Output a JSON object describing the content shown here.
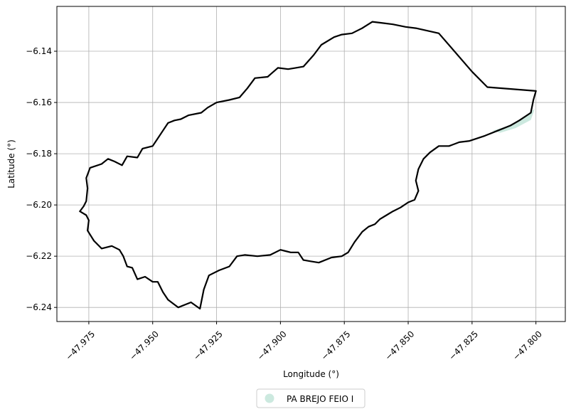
{
  "chart_data": {
    "type": "map",
    "xlabel": "Longitude (°)",
    "ylabel": "Latitude (°)",
    "xlim": [
      -47.9875,
      -47.7885
    ],
    "ylim": [
      -6.2455,
      -6.1225
    ],
    "xticks": [
      -47.975,
      -47.95,
      -47.925,
      -47.9,
      -47.875,
      -47.85,
      -47.825,
      -47.8
    ],
    "xtick_labels": [
      "−47.975",
      "−47.950",
      "−47.925",
      "−47.900",
      "−47.875",
      "−47.850",
      "−47.825",
      "−47.800"
    ],
    "yticks": [
      -6.14,
      -6.16,
      -6.18,
      -6.2,
      -6.22,
      -6.24
    ],
    "ytick_labels": [
      "−6.14",
      "−6.16",
      "−6.18",
      "−6.20",
      "−6.22",
      "−6.24"
    ],
    "grid": true,
    "legend": {
      "position": "bottom-center",
      "entries": [
        {
          "label": "PA BREJO FEIO I",
          "color": "#cce9df"
        }
      ]
    },
    "colors": {
      "boundary": "#000000",
      "fill": "#cce9df",
      "grid": "#b0b0b0"
    },
    "polygon": {
      "name": "PA BREJO FEIO I",
      "lonlat": [
        [
          -47.9785,
          -6.2025
        ],
        [
          -47.977,
          -6.2005
        ],
        [
          -47.976,
          -6.1985
        ],
        [
          -47.9755,
          -6.1935
        ],
        [
          -47.976,
          -6.1895
        ],
        [
          -47.9745,
          -6.1855
        ],
        [
          -47.97,
          -6.184
        ],
        [
          -47.9675,
          -6.182
        ],
        [
          -47.965,
          -6.183
        ],
        [
          -47.962,
          -6.1845
        ],
        [
          -47.96,
          -6.181
        ],
        [
          -47.956,
          -6.1815
        ],
        [
          -47.954,
          -6.178
        ],
        [
          -47.95,
          -6.177
        ],
        [
          -47.948,
          -6.174
        ],
        [
          -47.946,
          -6.171
        ],
        [
          -47.944,
          -6.168
        ],
        [
          -47.9415,
          -6.167
        ],
        [
          -47.939,
          -6.1665
        ],
        [
          -47.936,
          -6.165
        ],
        [
          -47.931,
          -6.164
        ],
        [
          -47.9285,
          -6.162
        ],
        [
          -47.925,
          -6.16
        ],
        [
          -47.92,
          -6.159
        ],
        [
          -47.916,
          -6.158
        ],
        [
          -47.913,
          -6.1545
        ],
        [
          -47.91,
          -6.1505
        ],
        [
          -47.905,
          -6.15
        ],
        [
          -47.901,
          -6.1465
        ],
        [
          -47.897,
          -6.147
        ],
        [
          -47.894,
          -6.1465
        ],
        [
          -47.891,
          -6.146
        ],
        [
          -47.887,
          -6.1415
        ],
        [
          -47.884,
          -6.1375
        ],
        [
          -47.879,
          -6.1345
        ],
        [
          -47.876,
          -6.1335
        ],
        [
          -47.872,
          -6.133
        ],
        [
          -47.868,
          -6.131
        ],
        [
          -47.864,
          -6.1285
        ],
        [
          -47.86,
          -6.129
        ],
        [
          -47.856,
          -6.1295
        ],
        [
          -47.851,
          -6.1305
        ],
        [
          -47.847,
          -6.131
        ],
        [
          -47.838,
          -6.133
        ],
        [
          -47.825,
          -6.148
        ],
        [
          -47.819,
          -6.154
        ],
        [
          -47.8,
          -6.1555
        ],
        [
          -47.801,
          -6.159
        ],
        [
          -47.802,
          -6.164
        ],
        [
          -47.8065,
          -6.167
        ],
        [
          -47.81,
          -6.169
        ],
        [
          -47.815,
          -6.171
        ],
        [
          -47.82,
          -6.173
        ],
        [
          -47.826,
          -6.175
        ],
        [
          -47.83,
          -6.1755
        ],
        [
          -47.834,
          -6.177
        ],
        [
          -47.838,
          -6.177
        ],
        [
          -47.8415,
          -6.1795
        ],
        [
          -47.844,
          -6.182
        ],
        [
          -47.846,
          -6.186
        ],
        [
          -47.847,
          -6.1905
        ],
        [
          -47.846,
          -6.1945
        ],
        [
          -47.8475,
          -6.198
        ],
        [
          -47.85,
          -6.199
        ],
        [
          -47.853,
          -6.201
        ],
        [
          -47.856,
          -6.2025
        ],
        [
          -47.8585,
          -6.204
        ],
        [
          -47.861,
          -6.2055
        ],
        [
          -47.863,
          -6.2075
        ],
        [
          -47.8655,
          -6.2085
        ],
        [
          -47.868,
          -6.2105
        ],
        [
          -47.871,
          -6.2145
        ],
        [
          -47.8735,
          -6.2185
        ],
        [
          -47.876,
          -6.22
        ],
        [
          -47.88,
          -6.2205
        ],
        [
          -47.885,
          -6.2225
        ],
        [
          -47.888,
          -6.222
        ],
        [
          -47.891,
          -6.2215
        ],
        [
          -47.893,
          -6.2185
        ],
        [
          -47.896,
          -6.2185
        ],
        [
          -47.898,
          -6.218
        ],
        [
          -47.9,
          -6.2175
        ],
        [
          -47.904,
          -6.2195
        ],
        [
          -47.909,
          -6.22
        ],
        [
          -47.914,
          -6.2195
        ],
        [
          -47.917,
          -6.22
        ],
        [
          -47.92,
          -6.224
        ],
        [
          -47.924,
          -6.2255
        ],
        [
          -47.928,
          -6.2275
        ],
        [
          -47.93,
          -6.233
        ],
        [
          -47.931,
          -6.238
        ],
        [
          -47.9315,
          -6.2405
        ],
        [
          -47.935,
          -6.238
        ],
        [
          -47.94,
          -6.24
        ],
        [
          -47.944,
          -6.237
        ],
        [
          -47.946,
          -6.234
        ],
        [
          -47.948,
          -6.23
        ],
        [
          -47.95,
          -6.23
        ],
        [
          -47.953,
          -6.228
        ],
        [
          -47.956,
          -6.229
        ],
        [
          -47.958,
          -6.2245
        ],
        [
          -47.96,
          -6.224
        ],
        [
          -47.9615,
          -6.22
        ],
        [
          -47.963,
          -6.2175
        ],
        [
          -47.966,
          -6.216
        ],
        [
          -47.97,
          -6.217
        ],
        [
          -47.973,
          -6.214
        ],
        [
          -47.9755,
          -6.21
        ],
        [
          -47.975,
          -6.206
        ],
        [
          -47.976,
          -6.204
        ]
      ],
      "shaded_lonlat": [
        [
          -47.817,
          -6.171
        ],
        [
          -47.812,
          -6.1695
        ],
        [
          -47.806,
          -6.167
        ],
        [
          -47.8025,
          -6.164
        ],
        [
          -47.8005,
          -6.1625
        ],
        [
          -47.802,
          -6.1668
        ],
        [
          -47.808,
          -6.17
        ],
        [
          -47.814,
          -6.1718
        ]
      ]
    }
  }
}
